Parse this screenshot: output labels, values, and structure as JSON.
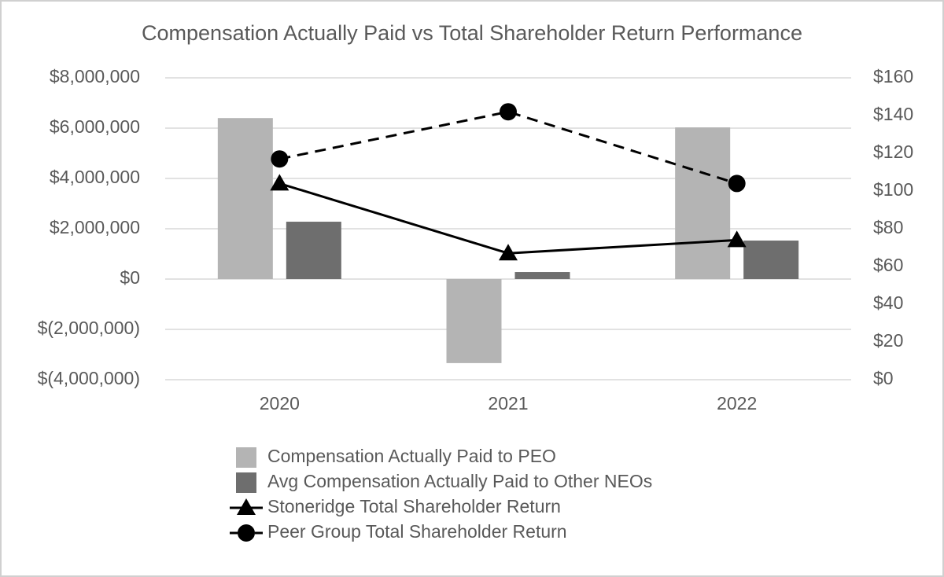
{
  "chart_data": {
    "type": "combo",
    "title": "Compensation Actually Paid vs Total Shareholder Return Performance",
    "categories": [
      "2020",
      "2021",
      "2022"
    ],
    "ylim": [
      -4000000,
      8000000
    ],
    "yticks": [
      {
        "value": -4000000,
        "label": "$(4,000,000)"
      },
      {
        "value": -2000000,
        "label": "$(2,000,000)"
      },
      {
        "value": 0,
        "label": "$0"
      },
      {
        "value": 2000000,
        "label": "$2,000,000"
      },
      {
        "value": 4000000,
        "label": "$4,000,000"
      },
      {
        "value": 6000000,
        "label": "$6,000,000"
      },
      {
        "value": 8000000,
        "label": "$8,000,000"
      }
    ],
    "y2lim": [
      0,
      160
    ],
    "y2ticks": [
      {
        "value": 0,
        "label": "$0"
      },
      {
        "value": 20,
        "label": "$20"
      },
      {
        "value": 40,
        "label": "$40"
      },
      {
        "value": 60,
        "label": "$60"
      },
      {
        "value": 80,
        "label": "$80"
      },
      {
        "value": 100,
        "label": "$100"
      },
      {
        "value": 120,
        "label": "$120"
      },
      {
        "value": 140,
        "label": "$140"
      },
      {
        "value": 160,
        "label": "$160"
      }
    ],
    "grid": true,
    "legend": "bottom",
    "series": [
      {
        "name": "Compensation Actually Paid to PEO",
        "type": "bar",
        "color": "#b4b4b4",
        "values": [
          6400000,
          -3340000,
          6030000
        ]
      },
      {
        "name": "Avg Compensation Actually Paid to Other NEOs",
        "type": "bar",
        "color": "#6e6e6e",
        "values": [
          2280000,
          280000,
          1530000
        ]
      },
      {
        "name": "Stoneridge Total Shareholder Return",
        "type": "line",
        "axis": "y2",
        "color": "#000000",
        "marker": "triangle",
        "dashed": false,
        "values": [
          104,
          67,
          74
        ]
      },
      {
        "name": "Peer Group Total Shareholder Return",
        "type": "line",
        "axis": "y2",
        "color": "#000000",
        "marker": "circle",
        "dashed": true,
        "values": [
          117,
          142,
          104
        ]
      }
    ]
  }
}
